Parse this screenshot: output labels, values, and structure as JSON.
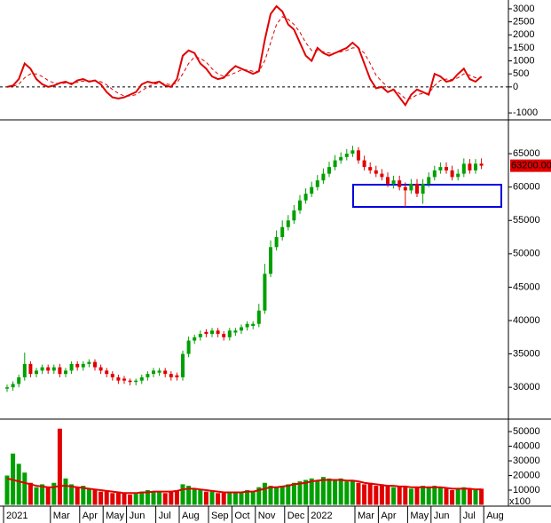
{
  "chart_data": [
    {
      "type": "line",
      "series": [
        {
          "color": "#e00000",
          "values": [
            0,
            50,
            300,
            900,
            700,
            300,
            100,
            0,
            50,
            150,
            200,
            100,
            250,
            300,
            200,
            250,
            100,
            -200,
            -400,
            -450,
            -400,
            -300,
            -200,
            100,
            200,
            150,
            200,
            50,
            0,
            300,
            1200,
            1400,
            1300,
            900,
            700,
            400,
            300,
            350,
            600,
            800,
            700,
            600,
            500,
            600,
            1800,
            2800,
            3100,
            2900,
            2400,
            2200,
            1700,
            1200,
            1000,
            1500,
            1300,
            1200,
            1300,
            1400,
            1500,
            1700,
            1500,
            900,
            300,
            -50,
            0,
            -200,
            -100,
            -400,
            -700,
            -300,
            -100,
            -200,
            -300,
            500,
            400,
            200,
            250,
            500,
            700,
            300,
            200,
            400,
            null
          ]
        },
        {
          "color": "#e00000",
          "dashed": true,
          "values": [
            0,
            20,
            100,
            350,
            500,
            500,
            400,
            250,
            150,
            120,
            150,
            150,
            180,
            220,
            230,
            230,
            200,
            80,
            -100,
            -250,
            -350,
            -350,
            -300,
            -150,
            0,
            100,
            150,
            120,
            80,
            150,
            500,
            900,
            1150,
            1100,
            950,
            700,
            500,
            400,
            450,
            550,
            650,
            650,
            600,
            600,
            1000,
            1700,
            2400,
            2700,
            2600,
            2400,
            2100,
            1700,
            1400,
            1400,
            1350,
            1300,
            1300,
            1350,
            1400,
            1500,
            1500,
            1300,
            900,
            450,
            200,
            0,
            -100,
            -250,
            -450,
            -450,
            -300,
            -250,
            -250,
            50,
            250,
            300,
            280,
            350,
            500,
            450,
            350,
            350,
            null
          ]
        }
      ],
      "ylim": [
        -1200,
        3340
      ],
      "yticks": [
        -1000,
        0,
        500,
        1000,
        1500,
        2000,
        2500,
        3000
      ],
      "zero_line": true
    },
    {
      "type": "candlestick",
      "categories": [
        "2021",
        null,
        null,
        null,
        null,
        null,
        null,
        null,
        "Mar",
        null,
        null,
        null,
        null,
        "Apr",
        null,
        null,
        null,
        "May",
        null,
        null,
        null,
        "Jun",
        null,
        null,
        null,
        null,
        "Jul",
        null,
        null,
        null,
        "Aug",
        null,
        null,
        null,
        null,
        "Sep",
        null,
        null,
        null,
        "Oct",
        null,
        null,
        null,
        "Nov",
        null,
        null,
        null,
        null,
        "Dec",
        null,
        null,
        null,
        "2022",
        null,
        null,
        null,
        null,
        null,
        null,
        null,
        "Mar",
        null,
        null,
        null,
        "Apr",
        null,
        null,
        null,
        null,
        "May",
        null,
        null,
        null,
        "Jun",
        null,
        null,
        null,
        null,
        "Jul",
        null,
        null,
        null,
        "Aug"
      ],
      "open": [
        29800,
        30000,
        30500,
        31500,
        33500,
        32000,
        32500,
        33000,
        32500,
        33000,
        32000,
        32500,
        33500,
        33000,
        33500,
        33800,
        33000,
        32500,
        32000,
        31500,
        31300,
        31000,
        30800,
        31000,
        31500,
        32000,
        32200,
        32500,
        32000,
        31800,
        31500,
        35000,
        37000,
        37500,
        38300,
        38000,
        38500,
        38000,
        37500,
        38200,
        38500,
        39000,
        39200,
        39500,
        41500,
        47000,
        51000,
        52500,
        54000,
        55000,
        56500,
        58000,
        59000,
        60000,
        61000,
        62000,
        63000,
        64000,
        64500,
        65000,
        65500,
        64000,
        63000,
        62500,
        62000,
        61500,
        60500,
        61000,
        60000,
        59500,
        60500,
        59000,
        60500,
        61500,
        62500,
        63000,
        62500,
        61500,
        62000,
        63500,
        62500,
        63500,
        null
      ],
      "high": [
        30400,
        30900,
        31900,
        35200,
        33900,
        32900,
        33400,
        33400,
        33400,
        33500,
        32900,
        33900,
        33900,
        33900,
        34200,
        34200,
        33400,
        32900,
        32400,
        31900,
        31700,
        31300,
        31300,
        31900,
        32400,
        32900,
        32900,
        32900,
        32400,
        32200,
        35500,
        37600,
        37900,
        38500,
        38700,
        38900,
        38900,
        38400,
        38900,
        38900,
        39400,
        39900,
        39900,
        42500,
        48500,
        52000,
        53500,
        55000,
        55800,
        57300,
        58800,
        59800,
        60800,
        61800,
        62800,
        63800,
        64800,
        65200,
        65700,
        66200,
        66000,
        64700,
        63700,
        63200,
        62700,
        62200,
        61700,
        61700,
        60700,
        61200,
        61200,
        61200,
        62200,
        63200,
        63700,
        63700,
        63200,
        62700,
        64300,
        64200,
        64200,
        64300,
        null
      ],
      "low": [
        29300,
        29500,
        30000,
        31000,
        31500,
        31500,
        32000,
        32000,
        32000,
        31500,
        31500,
        32000,
        32500,
        32500,
        33000,
        32500,
        32000,
        31500,
        31000,
        30500,
        30500,
        30300,
        30300,
        30500,
        31000,
        31500,
        31700,
        31500,
        31000,
        31000,
        31000,
        34500,
        36500,
        37000,
        37500,
        37500,
        37500,
        37000,
        37000,
        37700,
        38000,
        38500,
        38700,
        39000,
        41000,
        46500,
        50500,
        52000,
        53500,
        54500,
        56000,
        57500,
        58500,
        59500,
        60500,
        61500,
        62500,
        63500,
        64000,
        64500,
        63500,
        62500,
        62000,
        61500,
        61000,
        60000,
        59800,
        59500,
        57000,
        59000,
        58500,
        57500,
        60000,
        61000,
        62000,
        62000,
        61000,
        61000,
        61500,
        62000,
        62000,
        62700,
        null
      ],
      "close": [
        30000,
        30500,
        31500,
        33500,
        32000,
        32500,
        33000,
        32500,
        33000,
        32000,
        32500,
        33500,
        33000,
        33500,
        33800,
        33000,
        32500,
        32000,
        31500,
        31000,
        31000,
        30800,
        31000,
        31500,
        32000,
        32500,
        32500,
        32000,
        31500,
        31500,
        35000,
        37000,
        37500,
        38000,
        38000,
        38500,
        38000,
        37500,
        38500,
        38500,
        39000,
        39500,
        39500,
        41500,
        47000,
        51000,
        52500,
        54000,
        55000,
        56500,
        58000,
        59000,
        60000,
        61000,
        62000,
        63000,
        64000,
        64500,
        65000,
        65500,
        64000,
        63000,
        62500,
        62000,
        61500,
        60500,
        61000,
        60000,
        59500,
        60500,
        59000,
        60500,
        61500,
        62500,
        63000,
        62500,
        61500,
        62000,
        63500,
        62500,
        63500,
        63200,
        null
      ],
      "up_color": "#00a000",
      "down_color": "#e00000",
      "last_price_label": "63200.00",
      "ylim": [
        25500,
        69800
      ],
      "yticks": [
        30000,
        35000,
        40000,
        45000,
        50000,
        55000,
        60000,
        65000
      ]
    },
    {
      "type": "bar",
      "values": [
        20000,
        35000,
        28000,
        22000,
        15000,
        12000,
        14000,
        12000,
        15000,
        52000,
        18000,
        14000,
        12000,
        13000,
        11000,
        10000,
        9000,
        10000,
        8000,
        9000,
        8000,
        7000,
        7500,
        9000,
        10000,
        9000,
        9000,
        8000,
        9000,
        10000,
        14000,
        13000,
        11000,
        10000,
        9000,
        9000,
        8000,
        8000,
        9000,
        8000,
        9000,
        10000,
        9000,
        12000,
        15000,
        13000,
        12000,
        13000,
        14000,
        15000,
        16000,
        17000,
        18000,
        17000,
        19000,
        18000,
        17000,
        18000,
        16000,
        17000,
        15000,
        14000,
        15000,
        13000,
        14000,
        13000,
        12000,
        13000,
        12000,
        11000,
        12000,
        13000,
        12000,
        13000,
        12000,
        11000,
        10000,
        11000,
        12000,
        11000,
        10000,
        11000,
        null
      ],
      "ma": {
        "color": "#e00000",
        "values": [
          18000,
          17000,
          16000,
          15000,
          14000,
          13000,
          12500,
          12000,
          12000,
          13000,
          13000,
          12500,
          12000,
          11500,
          11000,
          10500,
          10000,
          9500,
          9000,
          8500,
          8000,
          8000,
          8000,
          8500,
          8500,
          9000,
          9000,
          9000,
          9000,
          9500,
          10500,
          11000,
          11000,
          10500,
          10000,
          9500,
          9000,
          8500,
          8500,
          8500,
          8500,
          9000,
          9000,
          10000,
          11000,
          12000,
          12000,
          12500,
          13000,
          14000,
          14500,
          15000,
          16000,
          16500,
          17000,
          17000,
          17000,
          17000,
          16500,
          16500,
          16000,
          15000,
          14500,
          14000,
          13500,
          13000,
          13000,
          12500,
          12500,
          12000,
          12000,
          12000,
          12000,
          12000,
          12000,
          11500,
          11000,
          11000,
          11000,
          11000,
          10500,
          10500,
          null
        ]
      },
      "unit_label": "x100",
      "ylim": [
        0,
        56700
      ],
      "yticks": [
        10000,
        20000,
        30000,
        40000,
        50000
      ]
    }
  ]
}
